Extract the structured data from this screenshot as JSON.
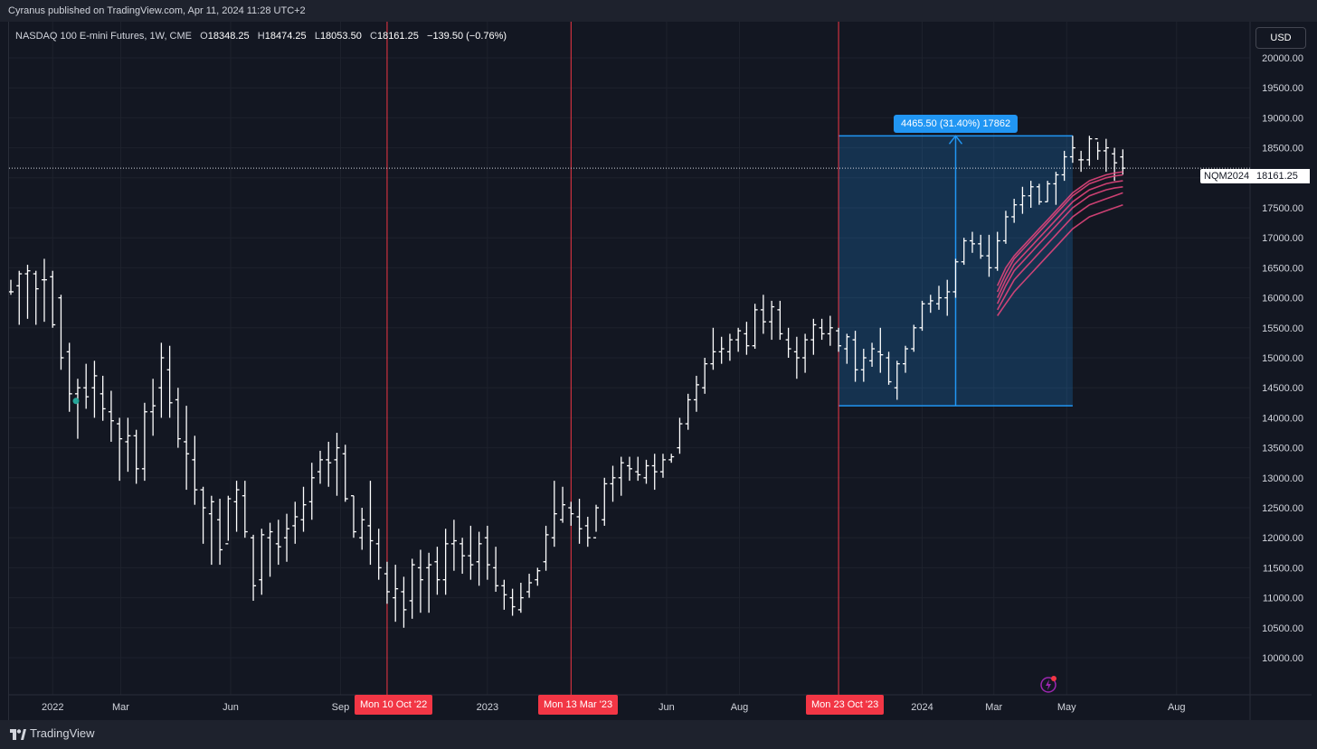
{
  "header": {
    "published": "Cyranus published on TradingView.com, Apr 11, 2024 11:28 UTC+2"
  },
  "legend": {
    "symbol": "NASDAQ 100 E-mini Futures, 1W, CME",
    "o_label": "O",
    "o_value": "18348.25",
    "h_label": "H",
    "h_value": "18474.25",
    "l_label": "L",
    "l_value": "18053.50",
    "c_label": "C",
    "c_value": "18161.25",
    "change": "−139.50 (−0.76%)"
  },
  "currency_button": "USD",
  "price_tags": {
    "symbol": "NQM2024",
    "last": "18161.25"
  },
  "measure_label": "4465.50 (31.40%) 17862",
  "date_tags": [
    "Mon 10 Oct '22",
    "Mon 13 Mar '23",
    "Mon 23 Oct '23"
  ],
  "footer": {
    "brand": "TradingView"
  },
  "colors": {
    "background": "#131722",
    "bar": "#ffffff",
    "vline": "#f23645",
    "measure": "#2196f3",
    "ribbon": "#e0457b",
    "dot": "#26a69a"
  },
  "chart_data": {
    "type": "ohlc",
    "title": "",
    "xlabel": "",
    "ylabel": "",
    "ylim": [
      9600,
      20600
    ],
    "y_ticks": [
      "20000.00",
      "19500.00",
      "19000.00",
      "18500.00",
      "18000.00",
      "17500.00",
      "17000.00",
      "16500.00",
      "16000.00",
      "15500.00",
      "15000.00",
      "14500.00",
      "14000.00",
      "13500.00",
      "13000.00",
      "12500.00",
      "12000.00",
      "11500.00",
      "11000.00",
      "10500.00",
      "10000.00"
    ],
    "x_ticks": [
      {
        "label": "2022",
        "date": "2022-01-03"
      },
      {
        "label": "Mar",
        "date": "2022-03-01"
      },
      {
        "label": "Jun",
        "date": "2022-06-01"
      },
      {
        "label": "Sep",
        "date": "2022-09-01"
      },
      {
        "label": "2023",
        "date": "2023-01-02"
      },
      {
        "label": "Jun",
        "date": "2023-06-01"
      },
      {
        "label": "Aug",
        "date": "2023-08-01"
      },
      {
        "label": "2024",
        "date": "2024-01-01"
      },
      {
        "label": "Mar",
        "date": "2024-03-01"
      },
      {
        "label": "May",
        "date": "2024-05-01"
      },
      {
        "label": "Aug",
        "date": "2024-08-01"
      }
    ],
    "x_range": [
      "2021-11-29",
      "2024-09-30"
    ],
    "last_price": 18161.25,
    "vertical_lines": [
      "2022-10-10",
      "2023-03-13",
      "2023-10-23"
    ],
    "measure": {
      "start_date": "2023-10-23",
      "end_date": "2024-05-06",
      "low": 14200,
      "high": 18700,
      "change": "4465.50",
      "pct": "31.40%"
    },
    "bars": [
      [
        16100,
        16300,
        16050,
        16100
      ],
      [
        16200,
        16450,
        15550,
        16400
      ],
      [
        16400,
        16550,
        15650,
        16450
      ],
      [
        16400,
        16450,
        15550,
        16150
      ],
      [
        16300,
        16650,
        15600,
        16300
      ],
      [
        16350,
        16450,
        15500,
        15550
      ],
      [
        16000,
        16050,
        14800,
        15000
      ],
      [
        15100,
        15250,
        14100,
        14400
      ],
      [
        14400,
        14650,
        13650,
        14500
      ],
      [
        14500,
        14900,
        14150,
        14350
      ],
      [
        14500,
        14950,
        14000,
        14700
      ],
      [
        14400,
        14700,
        13950,
        14150
      ],
      [
        14100,
        14450,
        13600,
        13950
      ],
      [
        13900,
        14000,
        12950,
        13650
      ],
      [
        13600,
        14000,
        13100,
        13700
      ],
      [
        13700,
        13800,
        12900,
        13150
      ],
      [
        13150,
        14250,
        12950,
        14100
      ],
      [
        14100,
        14650,
        13700,
        14200
      ],
      [
        14500,
        15250,
        14000,
        15000
      ],
      [
        14800,
        15200,
        14000,
        14250
      ],
      [
        14300,
        14500,
        13500,
        13650
      ],
      [
        13600,
        14200,
        12800,
        13400
      ],
      [
        13300,
        13700,
        12550,
        12800
      ],
      [
        12800,
        12850,
        11900,
        12500
      ],
      [
        12400,
        12700,
        11550,
        12600
      ],
      [
        12300,
        12650,
        11550,
        11800
      ],
      [
        11900,
        12700,
        11950,
        12650
      ],
      [
        12600,
        12950,
        12100,
        12800
      ],
      [
        12700,
        12950,
        12000,
        12100
      ],
      [
        12000,
        12050,
        10950,
        11200
      ],
      [
        11300,
        12150,
        11050,
        12050
      ],
      [
        12000,
        12250,
        11350,
        12100
      ],
      [
        11900,
        12300,
        11550,
        11850
      ],
      [
        12000,
        12400,
        11600,
        12150
      ],
      [
        12200,
        12600,
        11900,
        12350
      ],
      [
        12300,
        12850,
        12100,
        12550
      ],
      [
        12600,
        13250,
        12300,
        13000
      ],
      [
        13100,
        13450,
        12900,
        13300
      ],
      [
        13300,
        13600,
        12850,
        13250
      ],
      [
        13300,
        13750,
        12700,
        13500
      ],
      [
        13400,
        13550,
        12600,
        12650
      ],
      [
        12700,
        12700,
        12000,
        12100
      ],
      [
        12000,
        12500,
        11800,
        12300
      ],
      [
        12200,
        12950,
        11550,
        11950
      ],
      [
        11900,
        12150,
        11300,
        11500
      ],
      [
        11400,
        11600,
        10900,
        11100
      ],
      [
        11000,
        11550,
        10600,
        11150
      ],
      [
        11100,
        11350,
        10500,
        10800
      ],
      [
        10950,
        11650,
        10650,
        11550
      ],
      [
        11500,
        11800,
        10750,
        11300
      ],
      [
        11500,
        11750,
        10750,
        11550
      ],
      [
        11600,
        11850,
        11050,
        11300
      ],
      [
        11300,
        12150,
        11050,
        11900
      ],
      [
        11900,
        12300,
        11450,
        11950
      ],
      [
        11900,
        12000,
        11400,
        11700
      ],
      [
        11700,
        12200,
        11300,
        11550
      ],
      [
        11600,
        12100,
        11200,
        11900
      ],
      [
        12000,
        12200,
        11300,
        11550
      ],
      [
        11500,
        11850,
        11100,
        11200
      ],
      [
        11200,
        11300,
        10800,
        11050
      ],
      [
        11000,
        11150,
        10700,
        10850
      ],
      [
        10800,
        11250,
        10750,
        11000
      ],
      [
        11100,
        11400,
        11000,
        11250
      ],
      [
        11300,
        11500,
        11200,
        11450
      ],
      [
        11600,
        12200,
        11450,
        12050
      ],
      [
        12000,
        12950,
        11850,
        12400
      ],
      [
        12300,
        12850,
        12250,
        12550
      ],
      [
        12500,
        12600,
        12200,
        12400
      ],
      [
        12350,
        12650,
        11900,
        12150
      ],
      [
        12200,
        12350,
        11850,
        12000
      ],
      [
        12000,
        12550,
        12100,
        12500
      ],
      [
        12300,
        13000,
        12200,
        12900
      ],
      [
        12900,
        13200,
        12600,
        13000
      ],
      [
        13000,
        13350,
        12700,
        13250
      ],
      [
        13200,
        13350,
        12950,
        13150
      ],
      [
        13100,
        13350,
        12950,
        13050
      ],
      [
        13000,
        13300,
        12900,
        13200
      ],
      [
        13200,
        13400,
        12800,
        13100
      ],
      [
        13100,
        13400,
        13000,
        13300
      ],
      [
        13300,
        13400,
        13250,
        13350
      ],
      [
        13500,
        14000,
        13400,
        13900
      ],
      [
        13900,
        14400,
        13800,
        14300
      ],
      [
        14300,
        14700,
        14100,
        14550
      ],
      [
        14500,
        15000,
        14400,
        14900
      ],
      [
        14900,
        15500,
        14800,
        15100
      ],
      [
        15100,
        15350,
        14900,
        15150
      ],
      [
        15100,
        15400,
        14950,
        15300
      ],
      [
        15300,
        15500,
        15100,
        15450
      ],
      [
        15400,
        15600,
        15050,
        15200
      ],
      [
        15200,
        15900,
        15150,
        15800
      ],
      [
        15800,
        16050,
        15400,
        15600
      ],
      [
        15600,
        15950,
        15300,
        15850
      ],
      [
        15800,
        15950,
        15300,
        15400
      ],
      [
        15300,
        15500,
        15000,
        15150
      ],
      [
        15100,
        15350,
        14650,
        15000
      ],
      [
        15000,
        15400,
        14750,
        15300
      ],
      [
        15300,
        15650,
        15050,
        15550
      ],
      [
        15500,
        15650,
        15300,
        15400
      ],
      [
        15400,
        15700,
        15200,
        15500
      ],
      [
        15450,
        15500,
        15100,
        15200
      ],
      [
        15150,
        15400,
        14900,
        15350
      ],
      [
        15300,
        15450,
        14600,
        14800
      ],
      [
        14800,
        15150,
        14600,
        15000
      ],
      [
        14950,
        15250,
        14850,
        15150
      ],
      [
        15100,
        15500,
        14750,
        15050
      ],
      [
        15000,
        15100,
        14550,
        14600
      ],
      [
        14500,
        14950,
        14300,
        14900
      ],
      [
        14900,
        15200,
        14750,
        15150
      ],
      [
        15150,
        15550,
        15100,
        15500
      ],
      [
        15500,
        15950,
        15450,
        15900
      ],
      [
        15900,
        16050,
        15750,
        15950
      ],
      [
        15900,
        16200,
        15800,
        16000
      ],
      [
        16000,
        16300,
        15700,
        16100
      ],
      [
        16100,
        16650,
        16000,
        16600
      ],
      [
        16600,
        17000,
        16550,
        16950
      ],
      [
        16950,
        17100,
        16750,
        16900
      ],
      [
        16900,
        17050,
        16650,
        16700
      ],
      [
        16700,
        17050,
        16350,
        16500
      ],
      [
        16500,
        17100,
        16450,
        16950
      ],
      [
        16950,
        17450,
        16900,
        17350
      ],
      [
        17350,
        17650,
        17250,
        17550
      ],
      [
        17550,
        17850,
        17400,
        17700
      ],
      [
        17700,
        17950,
        17500,
        17850
      ],
      [
        17850,
        17900,
        17550,
        17600
      ],
      [
        17600,
        17950,
        17600,
        17900
      ],
      [
        17900,
        18100,
        17550,
        18050
      ],
      [
        18050,
        18450,
        17950,
        18350
      ],
      [
        18350,
        18700,
        18250,
        18500
      ],
      [
        18300,
        18450,
        18100,
        18300
      ],
      [
        18300,
        18700,
        18200,
        18650
      ],
      [
        18650,
        18600,
        18300,
        18450
      ],
      [
        18450,
        18650,
        18100,
        18500
      ],
      [
        18400,
        18500,
        17950,
        18250
      ],
      [
        18348.25,
        18474.25,
        18053.5,
        18161.25
      ]
    ],
    "ribbon": [
      [
        16200,
        16500,
        16700,
        16850,
        17000,
        17150,
        17300,
        17450,
        17600,
        17750,
        17850,
        17950,
        18000,
        18050,
        18080,
        18100
      ],
      [
        16100,
        16400,
        16650,
        16800,
        16950,
        17100,
        17250,
        17400,
        17550,
        17700,
        17800,
        17900,
        17950,
        18000,
        18030,
        18050
      ],
      [
        16000,
        16300,
        16550,
        16700,
        16850,
        17000,
        17150,
        17300,
        17450,
        17600,
        17700,
        17800,
        17850,
        17900,
        17930,
        17950
      ],
      [
        15900,
        16200,
        16450,
        16600,
        16750,
        16900,
        17050,
        17200,
        17350,
        17500,
        17600,
        17700,
        17750,
        17800,
        17830,
        17850
      ],
      [
        15800,
        16050,
        16300,
        16450,
        16600,
        16750,
        16900,
        17050,
        17200,
        17350,
        17450,
        17550,
        17600,
        17650,
        17700,
        17750
      ],
      [
        15700,
        15900,
        16100,
        16250,
        16400,
        16550,
        16700,
        16850,
        17000,
        17150,
        17250,
        17350,
        17400,
        17450,
        17500,
        17550
      ]
    ]
  }
}
